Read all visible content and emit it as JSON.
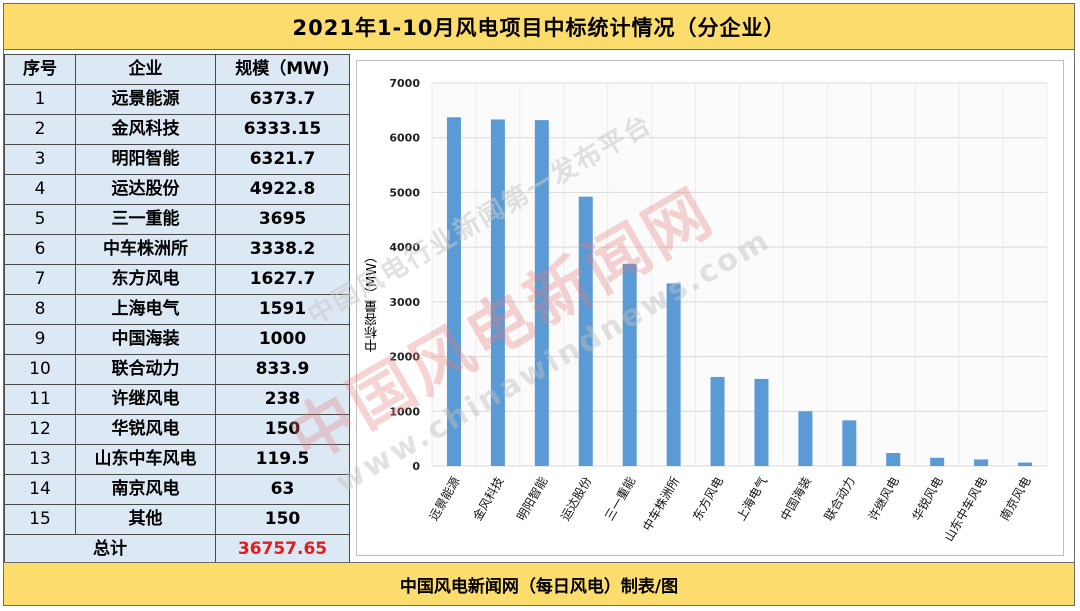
{
  "title": "2021年1-10月风电项目中标统计情况（分企业）",
  "footer": "中国风电新闻网（每日风电）制表/图",
  "table": {
    "headers": [
      "序号",
      "企业",
      "规模（MW)"
    ],
    "rows": [
      {
        "no": "1",
        "company": "远景能源",
        "value": "6373.7"
      },
      {
        "no": "2",
        "company": "金风科技",
        "value": "6333.15"
      },
      {
        "no": "3",
        "company": "明阳智能",
        "value": "6321.7"
      },
      {
        "no": "4",
        "company": "运达股份",
        "value": "4922.8"
      },
      {
        "no": "5",
        "company": "三一重能",
        "value": "3695"
      },
      {
        "no": "6",
        "company": "中车株洲所",
        "value": "3338.2"
      },
      {
        "no": "7",
        "company": "东方风电",
        "value": "1627.7"
      },
      {
        "no": "8",
        "company": "上海电气",
        "value": "1591"
      },
      {
        "no": "9",
        "company": "中国海装",
        "value": "1000"
      },
      {
        "no": "10",
        "company": "联合动力",
        "value": "833.9"
      },
      {
        "no": "11",
        "company": "许继风电",
        "value": "238"
      },
      {
        "no": "12",
        "company": "华锐风电",
        "value": "150"
      },
      {
        "no": "13",
        "company": "山东中车风电",
        "value": "119.5"
      },
      {
        "no": "14",
        "company": "南京风电",
        "value": "63"
      },
      {
        "no": "15",
        "company": "其他",
        "value": "150"
      }
    ],
    "total_label": "总计",
    "total_value": "36757.65"
  },
  "watermark": {
    "line1": "中国风电行业新闻第一发布平台",
    "line2": "中国风电新闻网",
    "line3": "www.chinawindnews.com"
  },
  "chart_data": {
    "type": "bar",
    "title": "",
    "xlabel": "",
    "ylabel": "中标容量（MW）",
    "categories": [
      "远景能源",
      "金风科技",
      "明阳智能",
      "运达股份",
      "三一重能",
      "中车株洲所",
      "东方风电",
      "上海电气",
      "中国海装",
      "联合动力",
      "许继风电",
      "华锐风电",
      "山东中车风电",
      "南京风电"
    ],
    "values": [
      6373.7,
      6333.15,
      6321.7,
      4922.8,
      3695,
      3338.2,
      1627.7,
      1591,
      1000,
      833.9,
      238,
      150,
      119.5,
      63
    ],
    "ylim": [
      0,
      7000
    ],
    "yticks": [
      "0",
      "1000",
      "2000",
      "3000",
      "4000",
      "5000",
      "6000",
      "7000"
    ],
    "grid": true,
    "legend": "none",
    "bar_color": "#5b9bd5",
    "grid_color": "#d9d9d9"
  }
}
